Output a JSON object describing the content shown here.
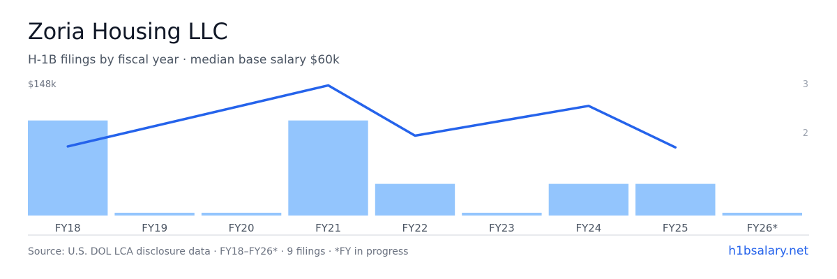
{
  "header": {
    "title": "Zoria Housing LLC",
    "subtitle": "H-1B filings by fiscal year · median base salary $60k"
  },
  "footer": {
    "source": "Source: U.S. DOL LCA disclosure data · FY18–FY26* · 9 filings · *FY in progress",
    "brand": "h1bsalary.net"
  },
  "colors": {
    "bar": "#93c5fd",
    "line": "#2563eb",
    "axis": "#d1d5db",
    "tick_text": "#4b5563",
    "axis_label_text": "#6b7280",
    "right_tick_text": "#9ca3af"
  },
  "chart_data": {
    "type": "bar",
    "categories": [
      "FY18",
      "FY19",
      "FY20",
      "FY21",
      "FY22",
      "FY23",
      "FY24",
      "FY25",
      "FY26*"
    ],
    "series": [
      {
        "type": "bar",
        "axis": "left",
        "values": [
          3,
          0,
          0,
          3,
          1,
          0,
          1,
          1,
          0
        ]
      },
      {
        "type": "line",
        "axis": "right",
        "values": [
          1.73,
          null,
          null,
          2.98,
          1.95,
          null,
          2.56,
          1.71,
          null
        ]
      }
    ],
    "left_axis": {
      "top_label": "$148k"
    },
    "right_axis": {
      "ticks": [
        {
          "value": 3,
          "label": "3"
        },
        {
          "value": 2,
          "label": "2"
        }
      ],
      "ylim": [
        0,
        3
      ]
    },
    "bar_ylim": [
      0,
      3.6
    ],
    "grid": false,
    "legend": "none"
  }
}
